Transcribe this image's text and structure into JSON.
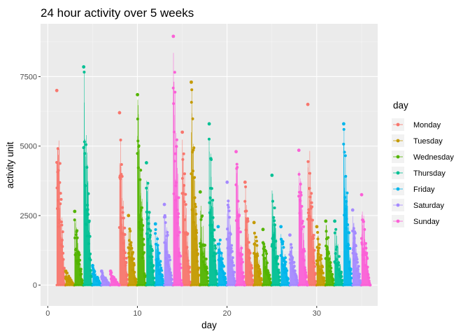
{
  "chart_data": {
    "type": "line",
    "title": "24 hour activity over 5 weeks",
    "xlabel": "day",
    "ylabel": "activity unit",
    "xlim": [
      -0.8,
      36.8
    ],
    "ylim": [
      -750,
      9400
    ],
    "xticks": [
      0,
      10,
      20,
      30
    ],
    "xtick_labels": [
      "0",
      "10",
      "20",
      "30"
    ],
    "yticks": [
      0,
      2500,
      5000,
      7500
    ],
    "ytick_labels": [
      "0",
      "2500",
      "5000",
      "7500"
    ],
    "grid": true,
    "legend": {
      "title": "day",
      "placement": "right"
    },
    "series": [
      {
        "name": "Monday",
        "color": "#F8766D",
        "days": [
          1,
          8,
          15,
          22,
          29
        ],
        "peaks": [
          7000,
          6200,
          5500,
          3700,
          6500
        ]
      },
      {
        "name": "Tuesday",
        "color": "#C49A00",
        "days": [
          2,
          9,
          16,
          23,
          30
        ],
        "peaks": [
          500,
          2500,
          7300,
          2250,
          2100
        ]
      },
      {
        "name": "Wednesday",
        "color": "#53B400",
        "days": [
          3,
          10,
          17,
          24,
          31
        ],
        "peaks": [
          2650,
          6850,
          3350,
          2000,
          2300
        ]
      },
      {
        "name": "Thursday",
        "color": "#00C094",
        "days": [
          4,
          11,
          18,
          25,
          32
        ],
        "peaks": [
          7850,
          4400,
          5800,
          3950,
          2300
        ]
      },
      {
        "name": "Friday",
        "color": "#00B6EB",
        "days": [
          5,
          12,
          19,
          26,
          33
        ],
        "peaks": [
          700,
          2200,
          2100,
          2100,
          5800
        ]
      },
      {
        "name": "Saturday",
        "color": "#A58AFF",
        "days": [
          6,
          13,
          20,
          27,
          34
        ],
        "peaks": [
          500,
          2900,
          3700,
          1800,
          2700
        ]
      },
      {
        "name": "Sunday",
        "color": "#FB61D7",
        "days": [
          7,
          14,
          21,
          28,
          35
        ],
        "peaks": [
          500,
          8950,
          4800,
          4850,
          3250
        ]
      }
    ]
  }
}
